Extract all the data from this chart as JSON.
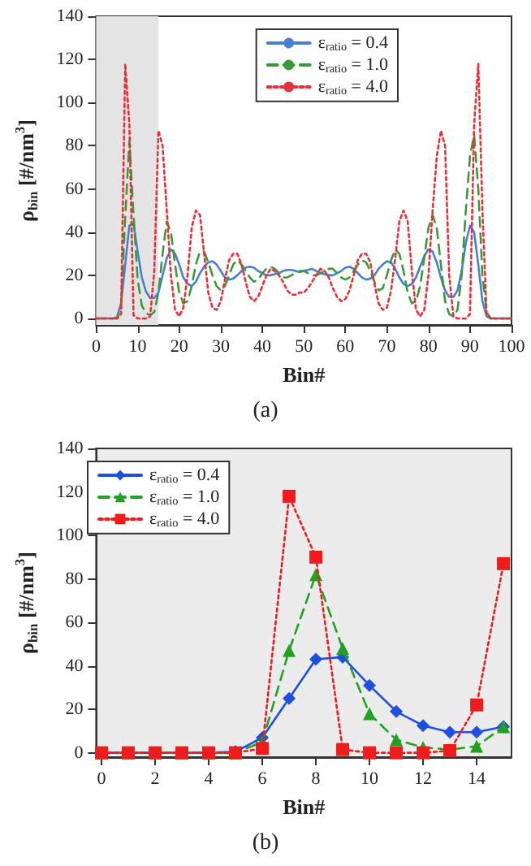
{
  "chart_data": [
    {
      "type": "line",
      "xlabel": "Bin#",
      "ylabel": "ρ$_{bin}$ [#/nm$^{3}$]",
      "annotations": [
        "(a)"
      ],
      "legend": "top right",
      "xlim": [
        0,
        100
      ],
      "xticks": [
        0,
        10,
        20,
        30,
        40,
        50,
        60,
        70,
        80,
        90,
        100
      ],
      "ylim": [
        -3,
        140
      ],
      "yticks": [
        0,
        20,
        40,
        60,
        80,
        100,
        120,
        140
      ],
      "bands": [
        {
          "axis": "x",
          "from": 0,
          "to": 15,
          "color": "#e4e4e4"
        }
      ],
      "x": [
        0,
        1,
        2,
        3,
        4,
        5,
        6,
        7,
        8,
        9,
        10,
        11,
        12,
        13,
        14,
        15,
        16,
        17,
        18,
        19,
        20,
        21,
        22,
        23,
        24,
        25,
        26,
        27,
        28,
        29,
        30,
        31,
        32,
        33,
        34,
        35,
        36,
        37,
        38,
        39,
        40,
        41,
        42,
        43,
        44,
        45,
        46,
        47,
        48,
        49,
        50,
        51,
        52,
        53,
        54,
        55,
        56,
        57,
        58,
        59,
        60,
        61,
        62,
        63,
        64,
        65,
        66,
        67,
        68,
        69,
        70,
        71,
        72,
        73,
        74,
        75,
        76,
        77,
        78,
        79,
        80,
        81,
        82,
        83,
        84,
        85,
        86,
        87,
        88,
        89,
        90,
        91,
        92,
        93,
        94,
        95,
        96,
        97,
        98,
        99,
        100
      ],
      "series": [
        {
          "name": "ε$_{ratio}$ = 0.4",
          "color": "#4a7fd0",
          "line_style": "solid",
          "marker": "none",
          "values": [
            0,
            0,
            0,
            0,
            0,
            0.5,
            7,
            25,
            43,
            44,
            31,
            19,
            12.5,
            9.5,
            9.5,
            12,
            20,
            28,
            32,
            30,
            25,
            19,
            16,
            15,
            17,
            21,
            24,
            26,
            26.5,
            25,
            22,
            19,
            18,
            18.5,
            20,
            22,
            23.5,
            24,
            23.5,
            22,
            21,
            20,
            20,
            20.5,
            21,
            22,
            22.5,
            22.5,
            22,
            21.5,
            22,
            22.5,
            23,
            22,
            21,
            20.5,
            20,
            20,
            21,
            22,
            23.5,
            24,
            23,
            21,
            19,
            18,
            18.5,
            20,
            23,
            25,
            26.5,
            26,
            23,
            19,
            16,
            15,
            16,
            19,
            24,
            29,
            32,
            31,
            26,
            19,
            13,
            10,
            10,
            13,
            22,
            35,
            43,
            40,
            25,
            8,
            1,
            0,
            0,
            0,
            0,
            0,
            0
          ]
        },
        {
          "name": "ε$_{ratio}$ = 1.0",
          "color": "#3a9a3a",
          "line_style": "dashed",
          "marker": "none",
          "values": [
            0,
            0,
            0,
            0,
            0,
            0,
            5,
            47,
            82,
            48,
            18,
            6,
            2.5,
            1.5,
            3,
            12,
            30,
            45,
            40,
            25,
            12,
            7,
            8,
            15,
            25,
            31,
            31,
            26,
            20,
            15,
            13,
            15,
            20,
            25,
            27,
            25,
            22,
            19,
            17,
            18,
            21,
            23,
            24,
            23,
            21,
            19,
            19,
            20,
            21,
            22,
            22,
            21,
            20,
            20,
            21,
            22,
            23,
            23,
            21,
            19,
            18,
            19,
            22,
            25,
            27,
            26,
            22,
            17,
            13,
            14,
            20,
            27,
            32,
            30,
            22,
            12,
            7,
            8,
            15,
            28,
            42,
            48,
            42,
            25,
            8,
            2,
            1,
            4,
            20,
            50,
            75,
            85,
            60,
            20,
            3,
            0,
            0,
            0,
            0,
            0,
            0
          ]
        },
        {
          "name": "ε$_{ratio}$ = 4.0",
          "color": "#e8303a",
          "line_style": "dotted",
          "marker": "none",
          "values": [
            0,
            0,
            0,
            0,
            0,
            0,
            2,
            118,
            90,
            1.5,
            0,
            0,
            0,
            1,
            22,
            87,
            80,
            50,
            20,
            4,
            1,
            5,
            20,
            42,
            50,
            48,
            30,
            12,
            5,
            4,
            8,
            18,
            27,
            30,
            30,
            25,
            17,
            10,
            8,
            10,
            15,
            20,
            23,
            22,
            20,
            17,
            13,
            11,
            11,
            12,
            12,
            14,
            17,
            20,
            23,
            22,
            19,
            14,
            10,
            8,
            9,
            13,
            20,
            27,
            30,
            30,
            26,
            16,
            7,
            4,
            5,
            13,
            28,
            45,
            50,
            45,
            22,
            4,
            1,
            4,
            20,
            50,
            75,
            87,
            80,
            20,
            1,
            0,
            0,
            0,
            2,
            90,
            118,
            50,
            2,
            0,
            0,
            0,
            0,
            0,
            0
          ]
        }
      ]
    },
    {
      "type": "line",
      "xlabel": "Bin#",
      "ylabel": "ρ$_{bin}$ [#/nm$^{3}$]",
      "annotations": [
        "(b)"
      ],
      "legend": "top left",
      "xlim": [
        -0.2,
        15.3
      ],
      "xticks": [
        0,
        2,
        4,
        6,
        8,
        10,
        12,
        14
      ],
      "ylim": [
        -2,
        140
      ],
      "yticks": [
        0,
        20,
        40,
        60,
        80,
        100,
        120,
        140
      ],
      "x": [
        0,
        1,
        2,
        3,
        4,
        5,
        6,
        7,
        8,
        9,
        10,
        11,
        12,
        13,
        14,
        15
      ],
      "series": [
        {
          "name": "ε$_{ratio}$ = 0.4",
          "color": "#1f4fe0",
          "line_style": "solid",
          "marker": "diamond",
          "values": [
            0,
            0,
            0,
            0,
            0,
            0.5,
            7,
            25,
            43,
            44,
            31,
            19,
            12.5,
            9.5,
            9.5,
            12
          ]
        },
        {
          "name": "ε$_{ratio}$ = 1.0",
          "color": "#22a022",
          "line_style": "dashed",
          "marker": "triangle",
          "values": [
            0,
            0,
            0,
            0,
            0,
            0,
            5,
            47,
            82,
            48,
            18,
            6,
            2.5,
            1.5,
            3,
            12
          ]
        },
        {
          "name": "ε$_{ratio}$ = 4.0",
          "color": "#ee1c1c",
          "line_style": "dotted",
          "marker": "square",
          "values": [
            0,
            0,
            0,
            0,
            0,
            0,
            2,
            118,
            90,
            1.5,
            0,
            0,
            0,
            1,
            22,
            87
          ]
        }
      ]
    }
  ]
}
